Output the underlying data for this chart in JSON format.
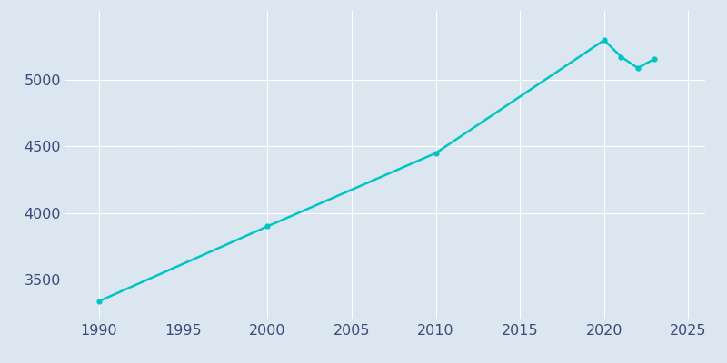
{
  "years": [
    1990,
    2000,
    2010,
    2020,
    2021,
    2022,
    2023
  ],
  "population": [
    3338,
    3900,
    4451,
    5300,
    5175,
    5090,
    5160
  ],
  "line_color": "#00C5C5",
  "marker": "o",
  "marker_size": 3.5,
  "line_width": 1.8,
  "bg_color": "#dce6f0",
  "xlim": [
    1988,
    2026
  ],
  "ylim": [
    3200,
    5520
  ],
  "xticks": [
    1990,
    1995,
    2000,
    2005,
    2010,
    2015,
    2020,
    2025
  ],
  "yticks": [
    3500,
    4000,
    4500,
    5000
  ],
  "grid_color": "#ffffff",
  "tick_color": "#3b4a7a",
  "tick_fontsize": 11.5
}
